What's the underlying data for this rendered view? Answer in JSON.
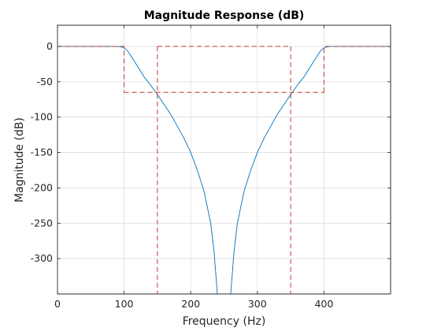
{
  "chart_data": {
    "type": "line",
    "title": "Magnitude Response (dB)",
    "xlabel": "Frequency (Hz)",
    "ylabel": "Magnitude (dB)",
    "xlim": [
      0,
      500
    ],
    "ylim": [
      -350,
      30
    ],
    "x_ticks": [
      0,
      100,
      200,
      300,
      400
    ],
    "y_ticks": [
      0,
      -50,
      -100,
      -150,
      -200,
      -250,
      -300
    ],
    "grid": true,
    "legend": "none",
    "series": [
      {
        "kind": "response",
        "color": "#0072bd",
        "x": [
          0,
          20,
          40,
          60,
          80,
          90,
          95,
          100,
          105,
          110,
          120,
          130,
          140,
          150,
          160,
          170,
          180,
          190,
          200,
          210,
          220,
          230,
          235,
          240,
          260,
          265,
          270,
          280,
          290,
          300,
          310,
          320,
          330,
          340,
          350,
          360,
          370,
          380,
          390,
          395,
          400,
          405,
          410,
          420,
          440,
          460,
          480,
          500
        ],
        "y": [
          0,
          0,
          0,
          0,
          0,
          0,
          -0.5,
          -2,
          -6,
          -13,
          -28,
          -43,
          -55,
          -68,
          -82,
          -96,
          -113,
          -130,
          -150,
          -175,
          -205,
          -250,
          -290,
          -350,
          -350,
          -290,
          -250,
          -205,
          -175,
          -150,
          -130,
          -113,
          -96,
          -82,
          -68,
          -55,
          -43,
          -28,
          -13,
          -6,
          -2,
          -0.5,
          0,
          0,
          0,
          0,
          0,
          0
        ]
      },
      {
        "kind": "specification",
        "color": "#c0392b",
        "segments": [
          {
            "x": [
              0,
              100,
              100
            ],
            "y": [
              0,
              0,
              -65
            ]
          },
          {
            "x": [
              100,
              400
            ],
            "y": [
              -65,
              -65
            ]
          },
          {
            "x": [
              400,
              400,
              500
            ],
            "y": [
              -65,
              0,
              0
            ]
          },
          {
            "x": [
              150,
              150
            ],
            "y": [
              0,
              -350
            ]
          },
          {
            "x": [
              150,
              350
            ],
            "y": [
              0,
              0
            ]
          },
          {
            "x": [
              350,
              350
            ],
            "y": [
              0,
              -350
            ]
          }
        ]
      }
    ]
  }
}
